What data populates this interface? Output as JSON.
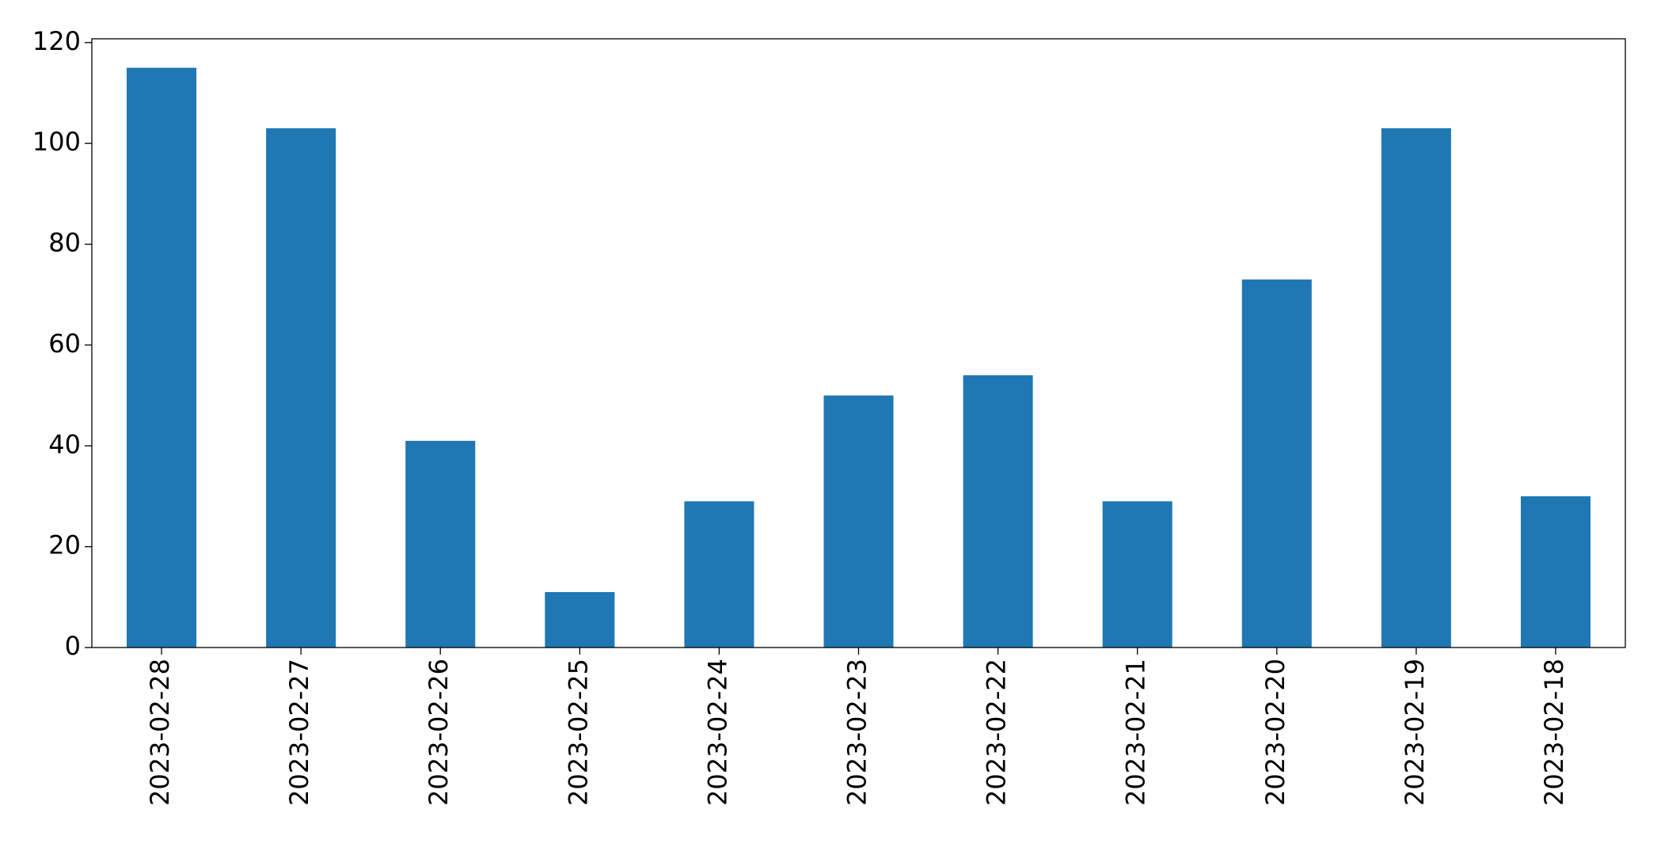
{
  "chart_data": {
    "type": "bar",
    "categories": [
      "2023-02-28",
      "2023-02-27",
      "2023-02-26",
      "2023-02-25",
      "2023-02-24",
      "2023-02-23",
      "2023-02-22",
      "2023-02-21",
      "2023-02-20",
      "2023-02-19",
      "2023-02-18"
    ],
    "values": [
      115,
      103,
      41,
      11,
      29,
      50,
      54,
      29,
      73,
      103,
      30
    ],
    "color": "#1f77b4",
    "ylim": [
      0,
      120.75
    ],
    "yticks": [
      0,
      20,
      40,
      60,
      80,
      100,
      120
    ],
    "grid": false
  }
}
